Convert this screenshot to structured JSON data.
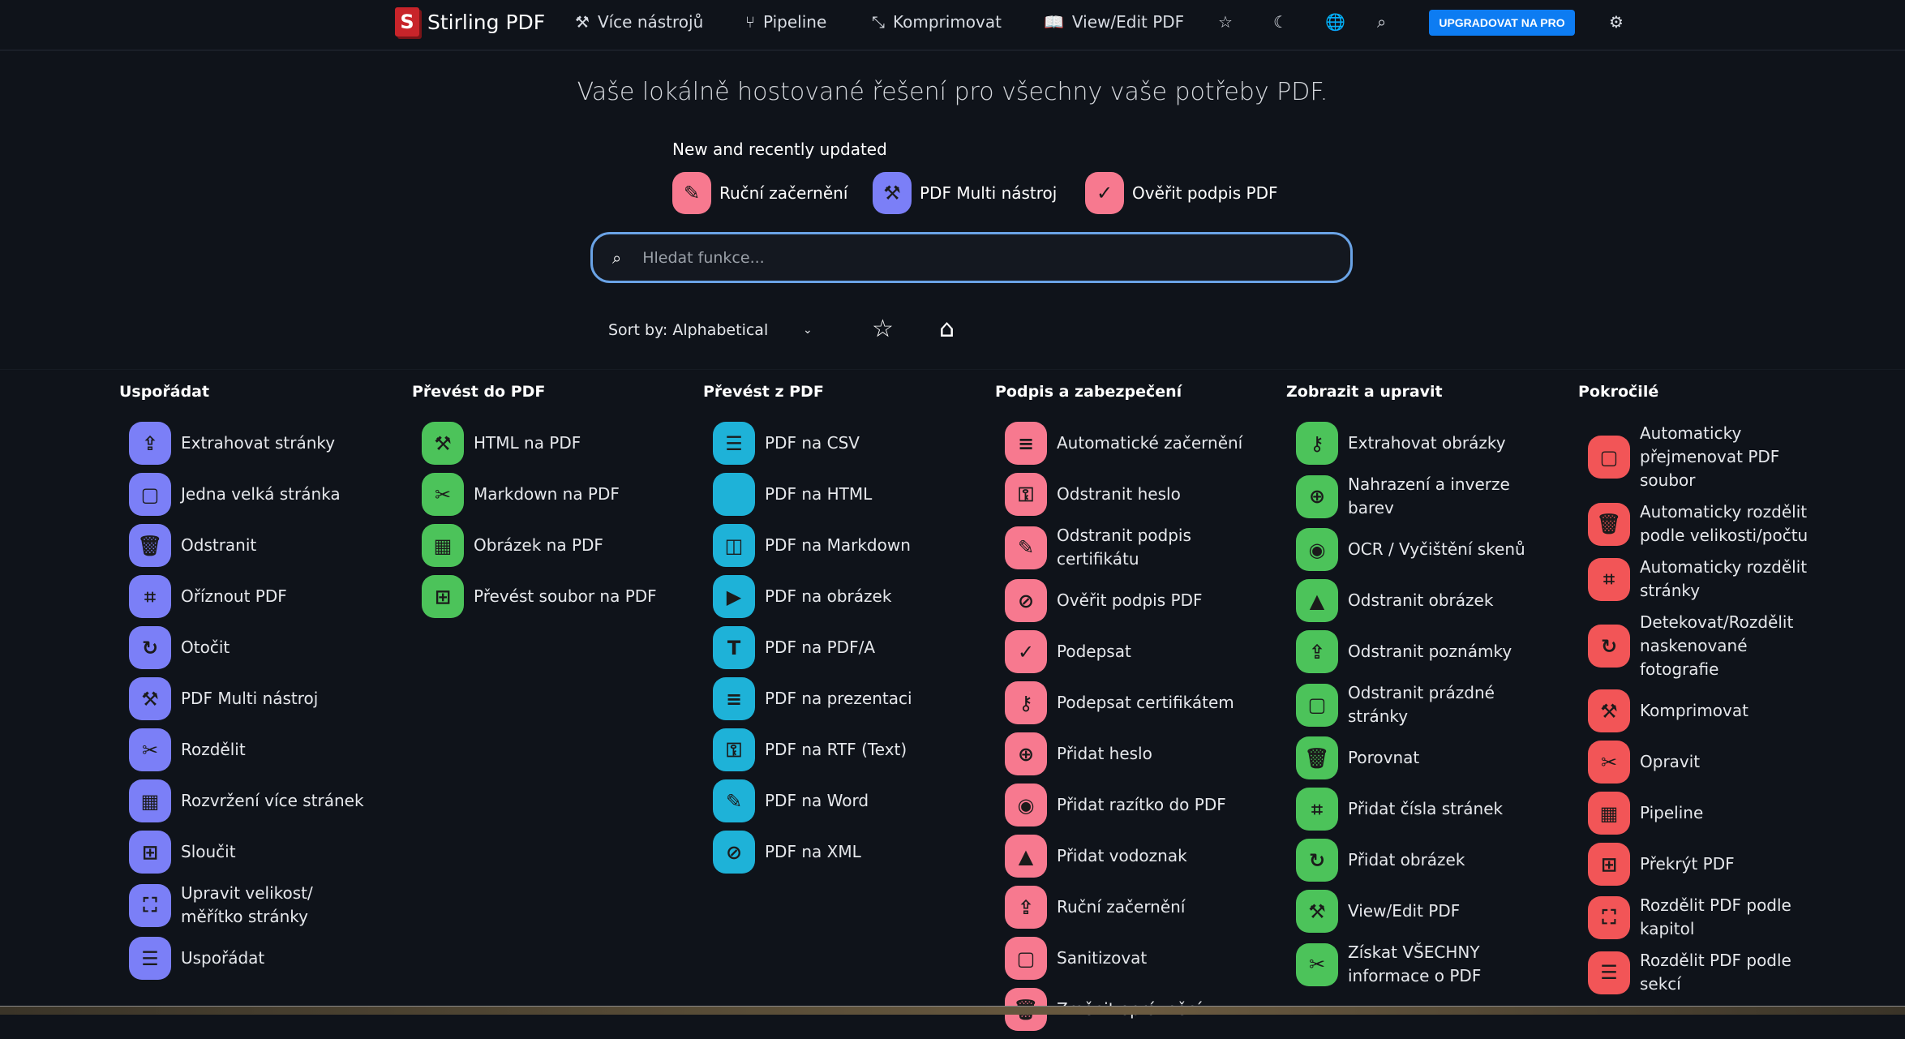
{
  "header": {
    "brand": "Stirling PDF",
    "nav": [
      {
        "label": "Více nástrojů",
        "icon": "tools-icon"
      },
      {
        "label": "Pipeline",
        "icon": "pipeline-icon"
      },
      {
        "label": "Komprimovat",
        "icon": "compress-icon"
      },
      {
        "label": "View/Edit PDF",
        "icon": "book-icon"
      }
    ],
    "upgrade_label": "UPGRADOVAT NA PRO"
  },
  "hero": {
    "title": "Vaše lokálně hostované řešení pro všechny vaše potřeby PDF."
  },
  "recent": {
    "heading": "New and recently updated",
    "items": [
      {
        "label": "Ruční začernění",
        "color": "#f7798f"
      },
      {
        "label": "PDF Multi nástroj",
        "color": "#7b7ff7"
      },
      {
        "label": "Ověřit podpis PDF",
        "color": "#f7798f"
      }
    ]
  },
  "search": {
    "placeholder": "Hledat funkce...",
    "value": ""
  },
  "sort": {
    "label": "Sort by: Alphabetical"
  },
  "colors": {
    "purple": "#7b7ff7",
    "green": "#4cc35a",
    "cyan": "#1eb2d8",
    "pink": "#f7798f",
    "red": "#f25557",
    "upgrade": "#0d7cf2",
    "background": "#0f131a"
  },
  "columns": [
    {
      "title": "Uspořádat",
      "color": "#7b7ff7",
      "items": [
        "Extrahovat stránky",
        "Jedna velká stránka",
        "Odstranit",
        "Oříznout PDF",
        "Otočit",
        "PDF Multi nástroj",
        "Rozdělit",
        "Rozvržení více stránek",
        "Sloučit",
        "Upravit velikost/\nměřítko stránky",
        "Uspořádat"
      ]
    },
    {
      "title": "Převést do PDF",
      "color": "#4cc35a",
      "items": [
        "HTML na PDF",
        "Markdown na PDF",
        "Obrázek na PDF",
        "Převést soubor na PDF"
      ]
    },
    {
      "title": "Převést z PDF",
      "color": "#1eb2d8",
      "items": [
        "PDF na CSV",
        "PDF na HTML",
        "PDF na Markdown",
        "PDF na obrázek",
        "PDF na PDF/A",
        "PDF na prezentaci",
        "PDF na RTF (Text)",
        "PDF na Word",
        "PDF na XML"
      ]
    },
    {
      "title": "Podpis a zabezpečení",
      "color": "#f7798f",
      "items": [
        "Automatické začernění",
        "Odstranit heslo",
        "Odstranit podpis\ncertifikátu",
        "Ověřit podpis PDF",
        "Podepsat",
        "Podepsat certifikátem",
        "Přidat heslo",
        "Přidat razítko do PDF",
        "Přidat vodoznak",
        "Ruční začernění",
        "Sanitizovat",
        "Změnit oprávnění"
      ]
    },
    {
      "title": "Zobrazit a upravit",
      "color": "#4cc35a",
      "items": [
        "Extrahovat obrázky",
        "Nahrazení a inverze\nbarev",
        "OCR / Vyčištění skenů",
        "Odstranit obrázek",
        "Odstranit poznámky",
        "Odstranit prázdné\nstránky",
        "Porovnat",
        "Přidat čísla stránek",
        "Přidat obrázek",
        "View/Edit PDF",
        "Získat VŠECHNY\ninformace o PDF"
      ]
    },
    {
      "title": "Pokročilé",
      "color": "#f25557",
      "items": [
        "Automaticky\npřejmenovat PDF\nsoubor",
        "Automaticky rozdělit\npodle velikosti/počtu",
        "Automaticky rozdělit\nstránky",
        "Detekovat/Rozdělit\nnaskenované\nfotografie",
        "Komprimovat",
        "Opravit",
        "Pipeline",
        "Překrýt PDF",
        "Rozdělit PDF podle\nkapitol",
        "Rozdělit PDF podle\nsekcí"
      ]
    }
  ]
}
